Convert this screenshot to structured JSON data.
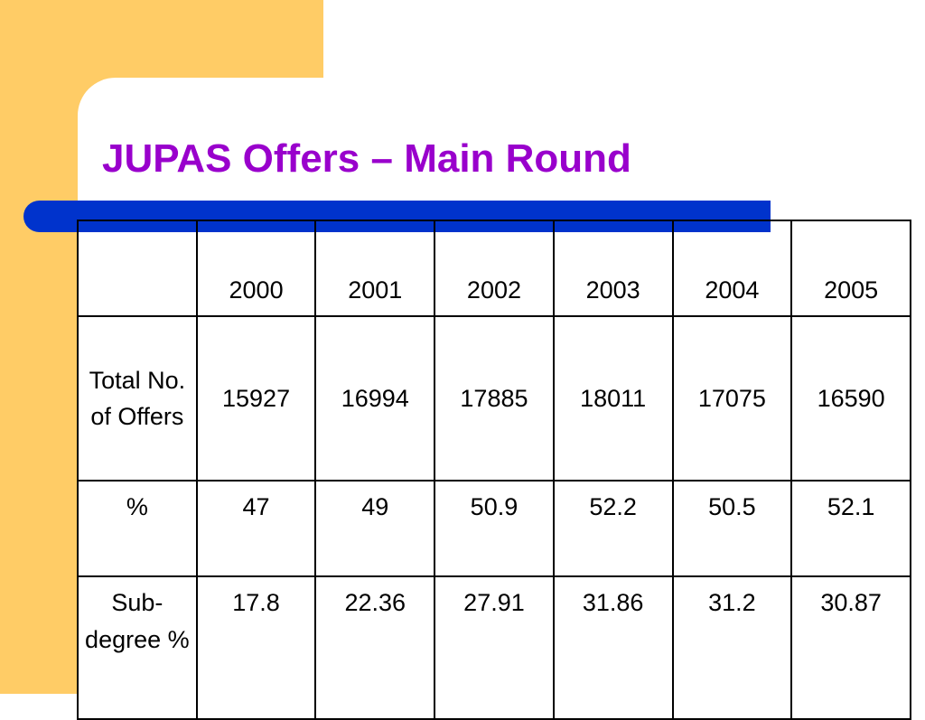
{
  "title": "JUPAS Offers – Main Round",
  "colors": {
    "title": "#9900cc",
    "accent_bar": "#0033cc",
    "background_block": "#ffcc66"
  },
  "table": {
    "corner": "",
    "years": [
      "2000",
      "2001",
      "2002",
      "2003",
      "2004",
      "2005"
    ],
    "rows": [
      {
        "label": "Total No. of Offers",
        "values": [
          "15927",
          "16994",
          "17885",
          "18011",
          "17075",
          "16590"
        ]
      },
      {
        "label": "%",
        "values": [
          "47",
          "49",
          "50.9",
          "52.2",
          "50.5",
          "52.1"
        ]
      },
      {
        "label": "Sub-degree %",
        "values": [
          "17.8",
          "22.36",
          "27.91",
          "31.86",
          "31.2",
          "30.87"
        ]
      }
    ]
  }
}
